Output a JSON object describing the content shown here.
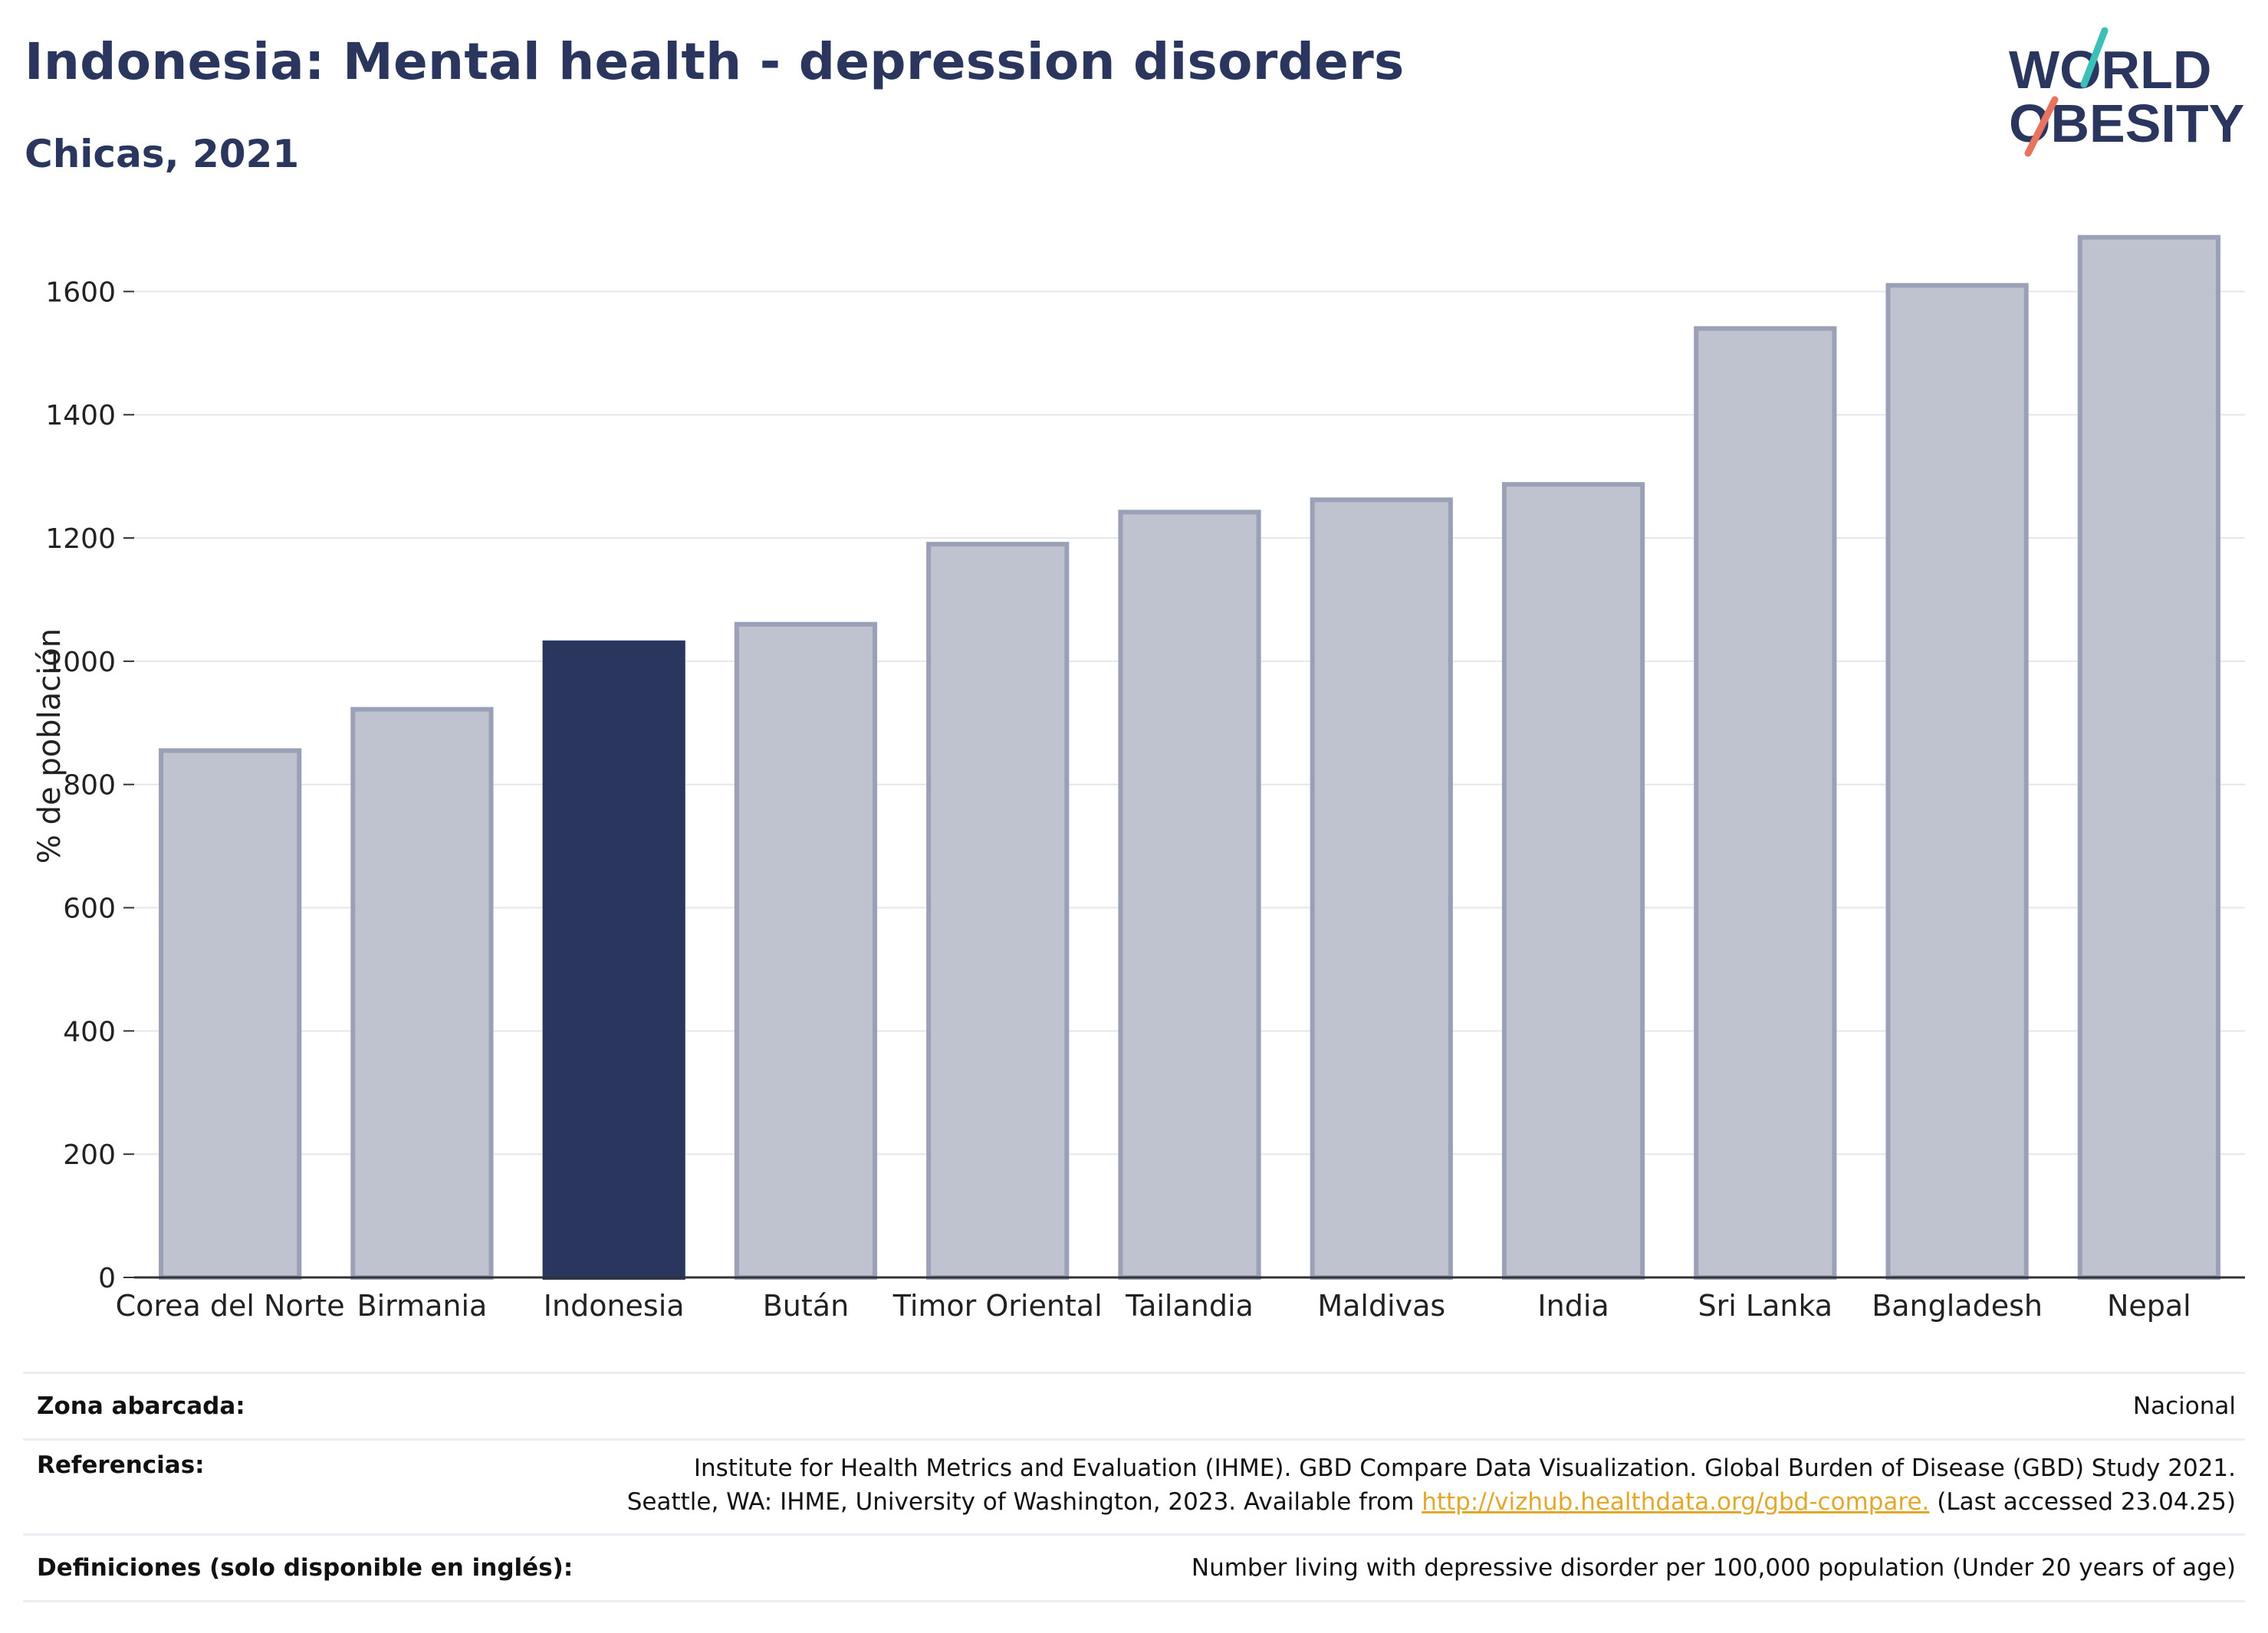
{
  "title": "Indonesia: Mental health - depression disorders",
  "subtitle": "Chicas, 2021",
  "logo": {
    "line1": "WORLD",
    "line2": "OBESITY",
    "accent_teal": "#3bbfb8",
    "accent_coral": "#e8735f",
    "color": "#2b365e"
  },
  "chart_data": {
    "type": "bar",
    "categories": [
      "Corea del Norte",
      "Birmania",
      "Indonesia",
      "Bután",
      "Timor Oriental",
      "Tailandia",
      "Maldivas",
      "India",
      "Sri Lanka",
      "Bangladesh",
      "Nepal"
    ],
    "values": [
      855,
      922,
      1030,
      1060,
      1190,
      1242,
      1262,
      1287,
      1540,
      1610,
      1688
    ],
    "highlight": "Indonesia",
    "ylabel": "% de población",
    "xlabel": "",
    "ylim": [
      0,
      1700
    ],
    "yticks": [
      0,
      200,
      400,
      600,
      800,
      1000,
      1200,
      1400,
      1600
    ],
    "grid": true,
    "colors": {
      "bar": "#bfc3cf",
      "bar_edge": "#9aa0b6",
      "highlight": "#2b365e",
      "grid": "#e6e6ec",
      "axis": "#333333"
    }
  },
  "footer": {
    "zona_label": "Zona abarcada:",
    "zona_value": "Nacional",
    "ref_label": "Referencias:",
    "ref_line1": "Institute for Health Metrics and Evaluation (IHME). GBD Compare Data Visualization. Global Burden of Disease (GBD) Study 2021.",
    "ref_line2_pre": "Seattle, WA: IHME, University of Washington, 2023. Available from ",
    "ref_link": "http://vizhub.healthdata.org/gbd-compare.",
    "ref_line2_post": " (Last accessed 23.04.25)",
    "def_label": "Definiciones (solo disponible en inglés):",
    "def_value": "Number living with depressive disorder per 100,000 population (Under 20 years of age)"
  }
}
